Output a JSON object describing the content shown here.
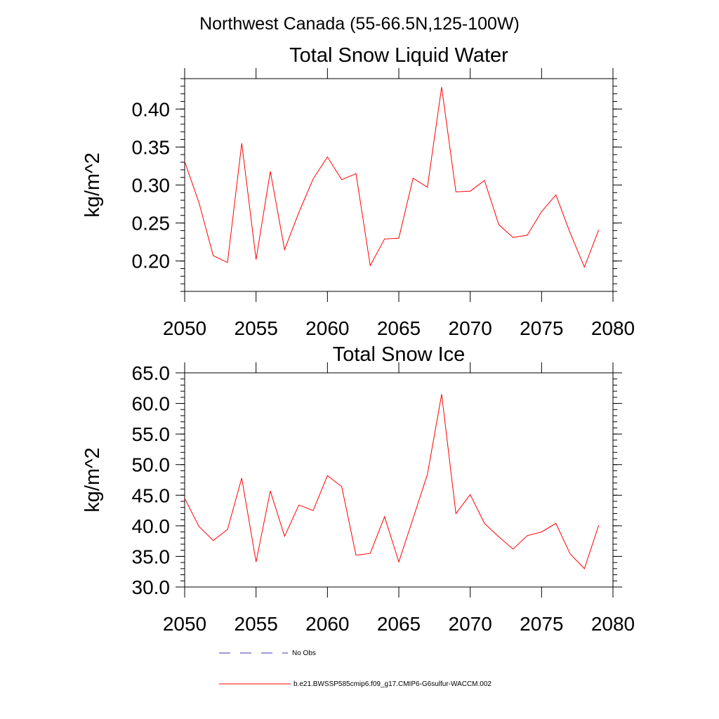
{
  "suptitle": "Northwest Canada (55-66.5N,125-100W)",
  "legend": {
    "entries": [
      {
        "label": "No Obs",
        "color": "#3a3aa8",
        "style": "dashed"
      },
      {
        "label": "b.e21.BWSSP585cmip6.f09_g17.CMIP6-G6sulfur-WACCM.002",
        "color": "#ff0000",
        "style": "solid"
      }
    ]
  },
  "chart_data": [
    {
      "type": "line",
      "title": "Total Snow Liquid Water",
      "xlabel": "",
      "ylabel": "kg/m^2",
      "xlim": [
        2050,
        2080
      ],
      "ylim": [
        0.16,
        0.44
      ],
      "xticks": [
        2050,
        2055,
        2060,
        2065,
        2070,
        2075,
        2080
      ],
      "xtick_labels": [
        "2050",
        "2055",
        "2060",
        "2065",
        "2070",
        "2075",
        "2080"
      ],
      "yticks": [
        0.2,
        0.25,
        0.3,
        0.35,
        0.4
      ],
      "ytick_labels": [
        "0.20",
        "0.25",
        "0.30",
        "0.35",
        "0.40"
      ],
      "yminor_step": 0.01,
      "xminor_step": 1,
      "series": [
        {
          "color": "#ff0000",
          "x": [
            2050,
            2051,
            2052,
            2053,
            2054,
            2055,
            2056,
            2057,
            2058,
            2059,
            2060,
            2061,
            2062,
            2063,
            2064,
            2065,
            2066,
            2067,
            2068,
            2069,
            2070,
            2071,
            2072,
            2073,
            2074,
            2075,
            2076,
            2077,
            2078,
            2079
          ],
          "values": [
            0.331,
            0.277,
            0.207,
            0.198,
            0.355,
            0.202,
            0.318,
            0.215,
            0.264,
            0.308,
            0.337,
            0.307,
            0.315,
            0.194,
            0.229,
            0.23,
            0.309,
            0.297,
            0.429,
            0.291,
            0.292,
            0.306,
            0.248,
            0.231,
            0.234,
            0.265,
            0.287,
            0.237,
            0.192,
            0.241
          ]
        }
      ]
    },
    {
      "type": "line",
      "title": "Total Snow Ice",
      "xlabel": "",
      "ylabel": "kg/m^2",
      "xlim": [
        2050,
        2080
      ],
      "ylim": [
        30.0,
        65.0
      ],
      "xticks": [
        2050,
        2055,
        2060,
        2065,
        2070,
        2075,
        2080
      ],
      "xtick_labels": [
        "2050",
        "2055",
        "2060",
        "2065",
        "2070",
        "2075",
        "2080"
      ],
      "yticks": [
        30.0,
        35.0,
        40.0,
        45.0,
        50.0,
        55.0,
        60.0,
        65.0
      ],
      "ytick_labels": [
        "30.0",
        "35.0",
        "40.0",
        "45.0",
        "50.0",
        "55.0",
        "60.0",
        "65.0"
      ],
      "yminor_step": 1,
      "xminor_step": 1,
      "series": [
        {
          "color": "#ff0000",
          "x": [
            2050,
            2051,
            2052,
            2053,
            2054,
            2055,
            2056,
            2057,
            2058,
            2059,
            2060,
            2061,
            2062,
            2063,
            2064,
            2065,
            2066,
            2067,
            2068,
            2069,
            2070,
            2071,
            2072,
            2073,
            2074,
            2075,
            2076,
            2077,
            2078,
            2079
          ],
          "values": [
            44.5,
            39.9,
            37.6,
            39.4,
            47.8,
            34.1,
            45.7,
            38.3,
            43.4,
            42.5,
            48.2,
            46.4,
            35.2,
            35.5,
            41.5,
            34.1,
            41.2,
            48.4,
            61.5,
            42.0,
            45.1,
            40.4,
            38.2,
            36.2,
            38.4,
            39.0,
            40.4,
            35.4,
            33.0,
            40.1
          ]
        }
      ]
    }
  ]
}
